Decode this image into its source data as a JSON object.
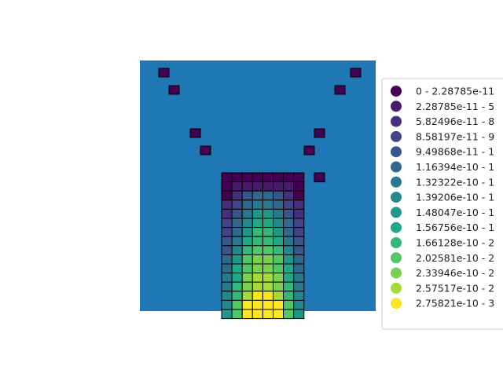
{
  "chart_data": {
    "type": "heatmap",
    "title": "",
    "xlabel": "",
    "ylabel": "",
    "background_color": "#1f77b4",
    "cell_edge_color": "#000000",
    "grid": false,
    "legend": {
      "placement": "right",
      "entries": [
        {
          "label": "0 - 2.28785e-11",
          "color": "#440154"
        },
        {
          "label": "2.28785e-11 - 5",
          "color": "#481a6c"
        },
        {
          "label": "5.82496e-11 - 8",
          "color": "#472f7d"
        },
        {
          "label": "8.58197e-11 - 9",
          "color": "#414487"
        },
        {
          "label": "9.49868e-11 - 1",
          "color": "#39568c"
        },
        {
          "label": "1.16394e-10 - 1",
          "color": "#31688e"
        },
        {
          "label": "1.32322e-10 - 1",
          "color": "#2a788e"
        },
        {
          "label": "1.39206e-10 - 1",
          "color": "#23888e"
        },
        {
          "label": "1.48047e-10 - 1",
          "color": "#1f988b"
        },
        {
          "label": "1.56756e-10 - 1",
          "color": "#22a884"
        },
        {
          "label": "1.66128e-10 - 2",
          "color": "#35b779"
        },
        {
          "label": "2.02581e-10 - 2",
          "color": "#54c568"
        },
        {
          "label": "2.33946e-10 - 2",
          "color": "#7ad151"
        },
        {
          "label": "2.57517e-10 - 2",
          "color": "#a5db36"
        },
        {
          "label": "2.75821e-10 - 3",
          "color": "#fde725"
        }
      ]
    },
    "grid_rows": [
      "0000000000000000000000",
      "0000000000000000000000",
      "0000000000000000000000",
      "0000000000000000000000",
      "0000000000000000000000",
      "0000000000000000000000",
      "0000000000000000000000",
      "0000000000000000000000",
      "0000000000000000000000",
      "0000000000000000000000",
      "0000000000000000000000",
      "0000000000000000000000",
      "0000000000000000000000",
      "0000000000000000000000",
      "0000000000000000000000",
      "0000000000000000000000",
      "0000000000000000000000",
      "0000000000000000000000",
      "0000000000000000000000",
      "0000000000000000000000",
      "0000000000000000000000",
      "0000000000000000000000",
      "0000000000000000000000",
      "0000000000000000000000"
    ],
    "cells": [
      {
        "col": 2,
        "row": 1,
        "class": 0
      },
      {
        "col": 20,
        "row": 1,
        "class": 0
      },
      {
        "col": 3,
        "row": 3,
        "class": 0
      },
      {
        "col": 19,
        "row": 3,
        "class": 0
      },
      {
        "col": 5,
        "row": 7,
        "class": 0
      },
      {
        "col": 17,
        "row": 7,
        "class": 0
      },
      {
        "col": 6,
        "row": 9,
        "class": 0
      },
      {
        "col": 16,
        "row": 9,
        "class": 0
      }
    ],
    "column": {
      "first_col": 8,
      "first_row": 11,
      "rows": [
        [
          null,
          0,
          0,
          0,
          0,
          0,
          0,
          0,
          0,
          null,
          0
        ],
        [
          0,
          1,
          1,
          1,
          1,
          1,
          1,
          0
        ],
        [
          0,
          2,
          4,
          5,
          5,
          4,
          2,
          0
        ],
        [
          2,
          3,
          5,
          6,
          6,
          5,
          3,
          2
        ],
        [
          2,
          4,
          6,
          8,
          8,
          6,
          4,
          2
        ],
        [
          3,
          5,
          7,
          9,
          9,
          7,
          5,
          3
        ],
        [
          3,
          5,
          8,
          10,
          10,
          8,
          5,
          3
        ],
        [
          4,
          6,
          9,
          10,
          10,
          9,
          6,
          4
        ],
        [
          4,
          7,
          10,
          11,
          11,
          10,
          7,
          4
        ],
        [
          5,
          8,
          11,
          12,
          12,
          11,
          8,
          5
        ],
        [
          5,
          9,
          11,
          12,
          12,
          11,
          9,
          5
        ],
        [
          6,
          9,
          12,
          13,
          13,
          12,
          9,
          6
        ],
        [
          6,
          10,
          12,
          13,
          13,
          12,
          10,
          6
        ],
        [
          7,
          10,
          13,
          14,
          14,
          13,
          10,
          7
        ],
        [
          7,
          11,
          14,
          14,
          14,
          14,
          11,
          7
        ],
        [
          8,
          11,
          14,
          14,
          14,
          14,
          11,
          8
        ]
      ]
    }
  }
}
